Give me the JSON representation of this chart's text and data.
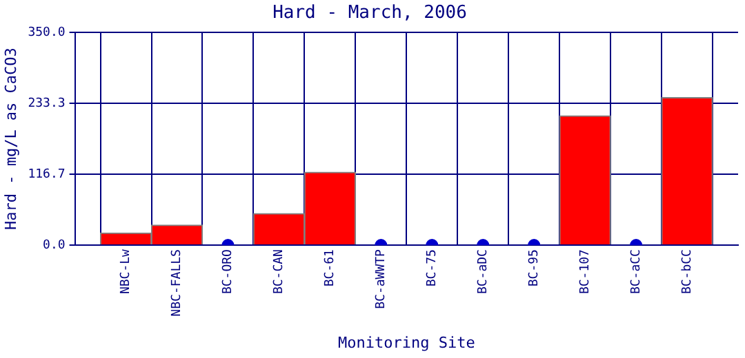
{
  "chart_data": {
    "type": "bar",
    "title": "Hard - March, 2006",
    "xlabel": "Monitoring Site",
    "ylabel": "Hard - mg/L as CaCO3",
    "categories": [
      "NBC-Lw",
      "NBC-FALLS",
      "BC-ORO",
      "BC-CAN",
      "BC-61",
      "BC-aWWTP",
      "BC-75",
      "BC-aDC",
      "BC-95",
      "BC-107",
      "BC-aCC",
      "BC-bCC"
    ],
    "series": [
      {
        "color": "#ff0000",
        "values": [
          20,
          33,
          null,
          52,
          120,
          null,
          null,
          null,
          null,
          213,
          null,
          243
        ]
      },
      {
        "type": "scatter",
        "color": "#0000cc",
        "x": [
          "BC-ORO",
          "BC-aWWTP",
          "BC-75",
          "BC-aDC",
          "BC-95",
          "BC-aCC"
        ],
        "values": [
          0,
          0,
          0,
          0,
          0,
          0
        ]
      }
    ],
    "ylim": [
      0,
      350
    ],
    "yticks": [
      {
        "value": 0,
        "label": "0.0"
      },
      116.7,
      233.3,
      {
        "value": 350,
        "label": "350.0"
      }
    ],
    "grid": true,
    "legend": false,
    "marker": "circle"
  }
}
